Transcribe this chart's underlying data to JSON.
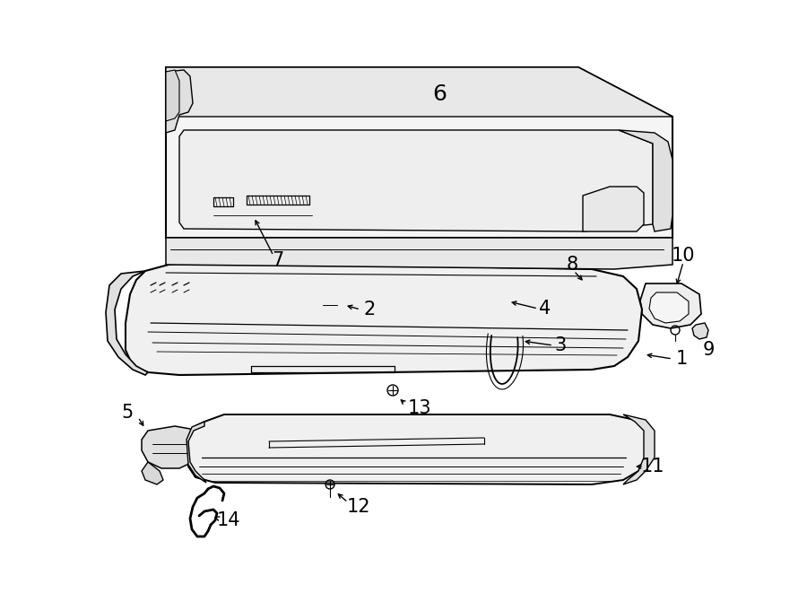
{
  "bg_color": "#ffffff",
  "line_color": "#000000",
  "fig_width": 9.0,
  "fig_height": 6.61,
  "dpi": 100,
  "label_fontsize": 15,
  "lw_main": 1.3,
  "lw_detail": 0.7
}
